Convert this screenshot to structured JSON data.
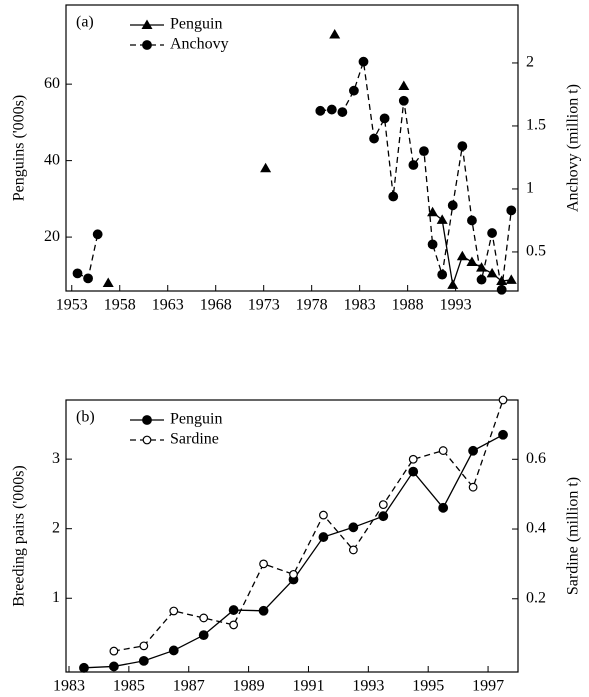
{
  "chart_data": [
    {
      "type": "line",
      "panel_label": "(a)",
      "ylabel": "Penguins ('000s)",
      "y2label": "Anchovy (million t)",
      "xlim": [
        1952.4,
        1999.5
      ],
      "xticks": [
        1953,
        1958,
        1963,
        1968,
        1973,
        1978,
        1983,
        1988,
        1993
      ],
      "ylim": [
        5.9,
        80.7
      ],
      "yticks": [
        20,
        40,
        60
      ],
      "y2lim": [
        0.19,
        2.46
      ],
      "y2ticks": [
        0.5,
        1,
        1.5,
        2
      ],
      "legend": "upper left",
      "series": [
        {
          "name": "Penguin",
          "color": "#000000",
          "marker": "triangle",
          "dashed": false,
          "axis": "y",
          "x": [
            1956.8,
            null,
            1973.2,
            null,
            1980.4,
            null,
            1987.6,
            null,
            1990.6,
            1991.6,
            1992.7,
            1993.7,
            1994.7,
            1995.7,
            1996.8,
            1997.8,
            1998.8
          ],
          "values": [
            8,
            null,
            38,
            null,
            73,
            null,
            59.5,
            null,
            26.5,
            24.5,
            7.5,
            15,
            13.5,
            12,
            10.5,
            8.5,
            8.8
          ]
        },
        {
          "name": "Anchovy",
          "color": "#000000",
          "marker": "circle",
          "dashed": true,
          "axis": "y2",
          "x": [
            1953.6,
            1954.7,
            1955.7,
            null,
            1978.9,
            1980.1,
            1981.2,
            1982.4,
            1983.4,
            1984.5,
            1985.6,
            1986.5,
            1987.6,
            1988.6,
            1989.7,
            1990.6,
            1991.6,
            1992.7,
            1993.7,
            1994.7,
            1995.7,
            1996.8,
            1997.8,
            1998.8
          ],
          "values": [
            0.33,
            0.29,
            0.64,
            null,
            1.62,
            1.63,
            1.61,
            1.78,
            2.01,
            1.4,
            1.56,
            0.94,
            1.7,
            1.19,
            1.3,
            0.56,
            0.32,
            0.87,
            1.34,
            0.75,
            0.28,
            0.65,
            0.2,
            0.83
          ]
        }
      ]
    },
    {
      "type": "line",
      "panel_label": "(b)",
      "ylabel": "Breeding pairs ('000s)",
      "y2label": "Sardine (million t)",
      "xlim": [
        1982.9,
        1998.0
      ],
      "xticks": [
        1983,
        1985,
        1987,
        1989,
        1991,
        1993,
        1995,
        1997
      ],
      "ylim": [
        -0.06,
        3.85
      ],
      "yticks": [
        1,
        2,
        3
      ],
      "y2lim": [
        -0.01,
        0.77
      ],
      "y2ticks": [
        0.2,
        0.4,
        0.6
      ],
      "legend": "upper left",
      "series": [
        {
          "name": "Penguin",
          "color": "#000000",
          "marker": "circle",
          "dashed": false,
          "axis": "y",
          "x": [
            1983.5,
            1984.5,
            1985.5,
            1986.5,
            1987.5,
            1988.5,
            1989.5,
            1990.5,
            1991.5,
            1992.5,
            1993.5,
            1994.5,
            1995.5,
            1996.5,
            1997.5
          ],
          "values": [
            0,
            0.02,
            0.1,
            0.25,
            0.47,
            0.83,
            0.82,
            1.27,
            1.88,
            2.02,
            2.18,
            2.82,
            2.3,
            3.12,
            3.35
          ]
        },
        {
          "name": "Sardine",
          "color": "#000000",
          "marker": "open-circle",
          "dashed": true,
          "axis": "y2",
          "x": [
            1984.5,
            1985.5,
            1986.5,
            1987.5,
            1988.5,
            1989.5,
            1990.5,
            1991.5,
            1992.5,
            1993.5,
            1994.5,
            1995.5,
            1996.5,
            1997.5
          ],
          "values": [
            0.05,
            0.065,
            0.165,
            0.145,
            0.125,
            0.3,
            0.27,
            0.44,
            0.34,
            0.47,
            0.6,
            0.625,
            0.52,
            0.77
          ]
        }
      ]
    }
  ]
}
